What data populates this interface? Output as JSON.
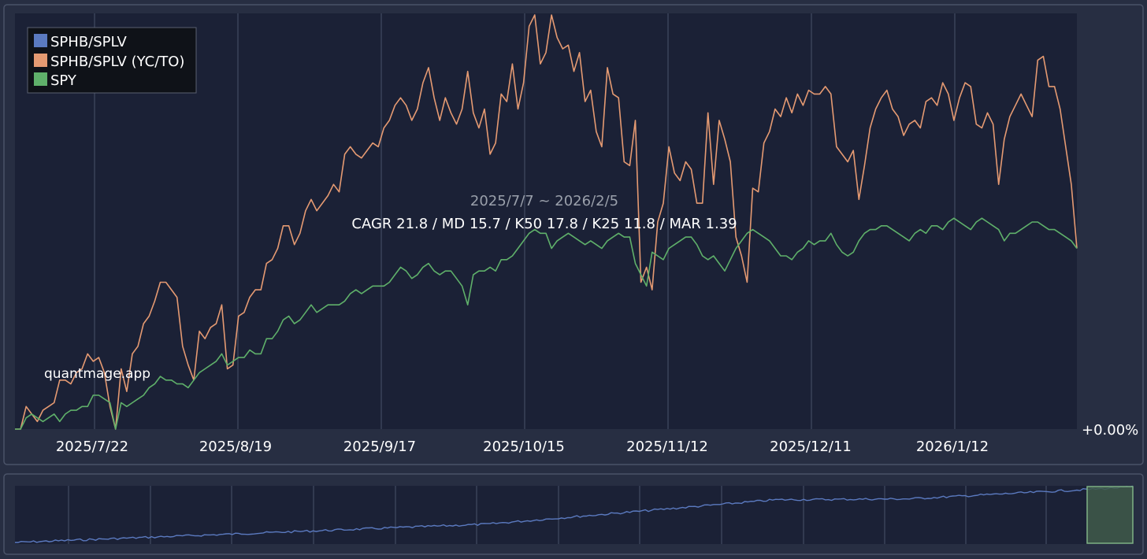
{
  "chart_data": {
    "type": "line",
    "period_label": "2025/7/7 ~ 2026/2/5",
    "stats_label": "CAGR 21.8 / MD 15.7 / K50 17.8 / K25 11.8 / MAR 1.39",
    "watermark": "quantmage.app",
    "y_axis_label": "+0.00%",
    "x_tick_labels": [
      "2025/7/22",
      "2025/8/19",
      "2025/9/17",
      "2025/10/15",
      "2025/11/12",
      "2025/12/11",
      "2026/1/12"
    ],
    "y_range": [
      0,
      110
    ],
    "grid": "vertical",
    "legend_position": "top-left",
    "series": [
      {
        "name": "SPHB/SPLV",
        "color": "#5b7ac0",
        "values": []
      },
      {
        "name": "SPHB/SPLV (YC/TO)",
        "color": "#e59a72",
        "values": [
          0,
          0,
          6,
          4,
          2,
          5,
          6,
          7,
          13,
          13,
          12,
          15,
          16,
          20,
          18,
          19,
          15,
          6,
          0,
          16,
          10,
          20,
          22,
          28,
          30,
          34,
          39,
          39,
          37,
          35,
          22,
          17,
          13,
          26,
          24,
          27,
          28,
          33,
          16,
          17,
          30,
          31,
          35,
          37,
          37,
          44,
          45,
          48,
          54,
          54,
          49,
          52,
          58,
          61,
          58,
          60,
          62,
          65,
          63,
          73,
          75,
          73,
          72,
          74,
          76,
          75,
          80,
          82,
          86,
          88,
          86,
          82,
          85,
          92,
          96,
          88,
          82,
          88,
          84,
          81,
          85,
          95,
          84,
          80,
          85,
          73,
          76,
          89,
          87,
          97,
          85,
          92,
          107,
          110,
          97,
          100,
          110,
          104,
          101,
          102,
          95,
          100,
          87,
          90,
          79,
          75,
          96,
          89,
          88,
          71,
          70,
          82,
          39,
          43,
          37,
          55,
          60,
          75,
          68,
          66,
          71,
          69,
          60,
          60,
          84,
          65,
          82,
          77,
          71,
          51,
          46,
          39,
          64,
          63,
          76,
          79,
          85,
          83,
          88,
          84,
          89,
          86,
          90,
          89,
          89,
          91,
          89,
          75,
          73,
          71,
          74,
          61,
          70,
          80,
          85,
          88,
          90,
          85,
          83,
          78,
          81,
          82,
          80,
          87,
          88,
          86,
          92,
          89,
          82,
          88,
          92,
          91,
          81,
          80,
          84,
          81,
          65,
          77,
          83,
          86,
          89,
          86,
          83,
          98,
          99,
          91,
          91,
          85,
          75,
          65,
          48
        ]
      },
      {
        "name": "SPY",
        "color": "#5fb06a",
        "values": [
          0,
          0,
          3,
          4,
          3,
          2,
          3,
          4,
          2,
          4,
          5,
          5,
          6,
          6,
          9,
          9,
          8,
          7,
          0,
          7,
          6,
          7,
          8,
          9,
          11,
          12,
          14,
          13,
          13,
          12,
          12,
          11,
          13,
          15,
          16,
          17,
          18,
          20,
          17,
          18,
          19,
          19,
          21,
          20,
          20,
          24,
          24,
          26,
          29,
          30,
          28,
          29,
          31,
          33,
          31,
          32,
          33,
          33,
          33,
          34,
          36,
          37,
          36,
          37,
          38,
          38,
          38,
          39,
          41,
          43,
          42,
          40,
          41,
          43,
          44,
          42,
          41,
          42,
          42,
          40,
          38,
          33,
          41,
          42,
          42,
          43,
          42,
          45,
          45,
          46,
          48,
          50,
          52,
          53,
          52,
          52,
          48,
          50,
          51,
          52,
          51,
          50,
          49,
          50,
          49,
          48,
          50,
          51,
          52,
          51,
          51,
          44,
          41,
          38,
          47,
          46,
          45,
          48,
          49,
          50,
          51,
          51,
          49,
          46,
          45,
          46,
          44,
          42,
          45,
          48,
          50,
          52,
          53,
          52,
          51,
          50,
          48,
          46,
          46,
          45,
          47,
          48,
          50,
          49,
          50,
          50,
          52,
          49,
          47,
          46,
          47,
          50,
          52,
          53,
          53,
          54,
          54,
          53,
          52,
          51,
          50,
          52,
          53,
          52,
          54,
          54,
          53,
          55,
          56,
          55,
          54,
          53,
          55,
          56,
          55,
          54,
          53,
          50,
          52,
          52,
          53,
          54,
          55,
          55,
          54,
          53,
          53,
          52,
          51,
          50,
          48
        ]
      }
    ],
    "navigator": {
      "series_name": "SPHB/SPLV",
      "color": "#5b7ac0",
      "selection_color": "#7fb285"
    }
  }
}
